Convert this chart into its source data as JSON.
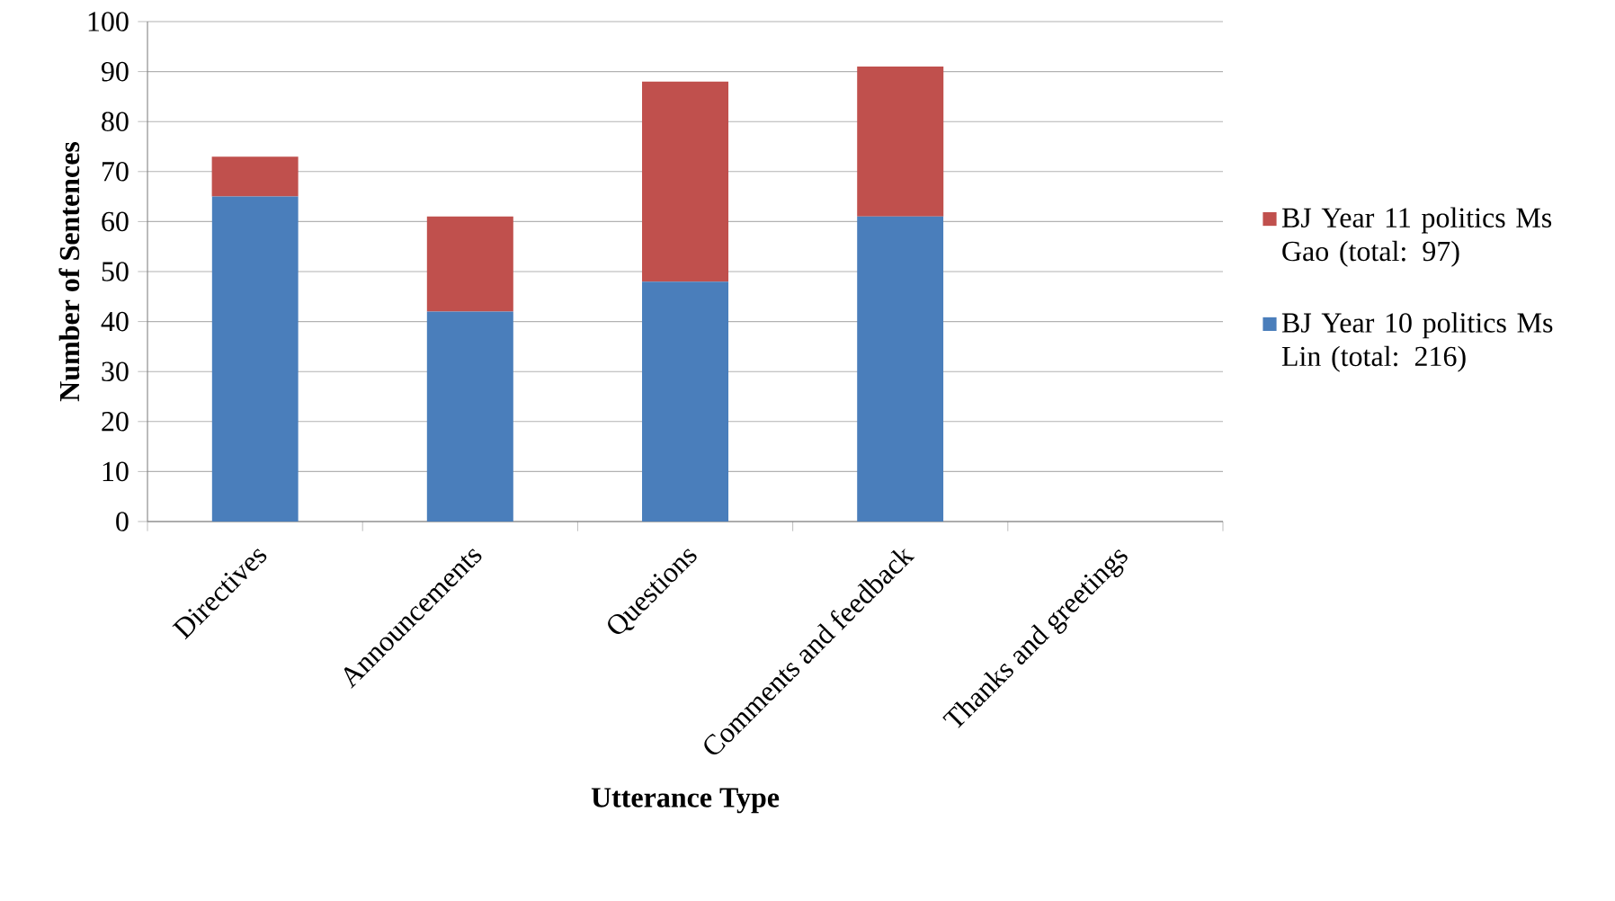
{
  "chart_data": {
    "type": "bar",
    "stacked": true,
    "xlabel": "Utterance Type",
    "ylabel": "Number of Sentences",
    "categories": [
      "Directives",
      "Announcements",
      "Questions",
      "Comments and feedback",
      "Thanks and greetings"
    ],
    "series": [
      {
        "name": "BJ Year 10 politics Ms Lin (total: 216)",
        "color": "#4a7ebb",
        "values": [
          65,
          42,
          48,
          61,
          0
        ]
      },
      {
        "name": "BJ Year 11 politics Ms Gao (total: 97)",
        "color": "#c0504d",
        "values": [
          8,
          19,
          40,
          30,
          0
        ]
      }
    ],
    "ylim": [
      0,
      100
    ],
    "yticks": [
      0,
      10,
      20,
      30,
      40,
      50,
      60,
      70,
      80,
      90,
      100
    ],
    "grid": "y",
    "legend": "right"
  }
}
